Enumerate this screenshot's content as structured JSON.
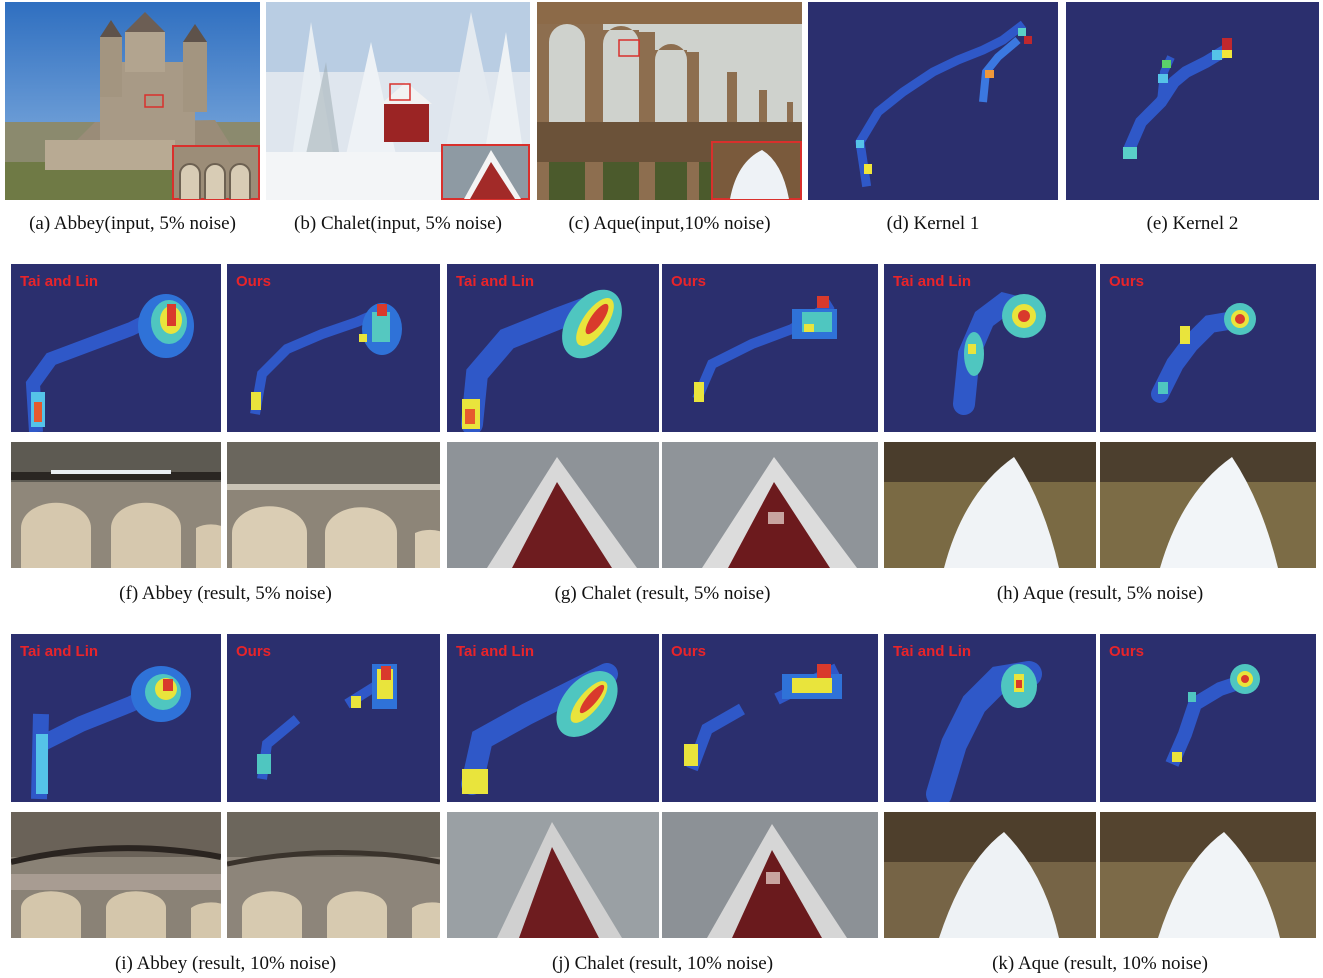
{
  "captions": {
    "a": "(a)  Abbey(input, 5% noise)",
    "b": "(b)  Chalet(input, 5% noise)",
    "c": "(c)  Aque(input,10% noise)",
    "d": "(d)  Kernel 1",
    "e": "(e)  Kernel 2",
    "f": "(f)  Abbey (result, 5% noise)",
    "g": "(g)  Chalet (result, 5% noise)",
    "h": "(h)  Aque (result, 5% noise)",
    "i": "(i)  Abbey (result, 10% noise)",
    "j": "(j)  Chalet (result, 10% noise)",
    "k": "(k)  Aque (result, 10% noise)"
  },
  "methods": {
    "tai_lin": "Tai and Lin",
    "ours": "Ours"
  },
  "colors": {
    "kernel_bg": "#2b2f6e",
    "label_red": "#e8242a",
    "inset_red": "#d9302c"
  }
}
